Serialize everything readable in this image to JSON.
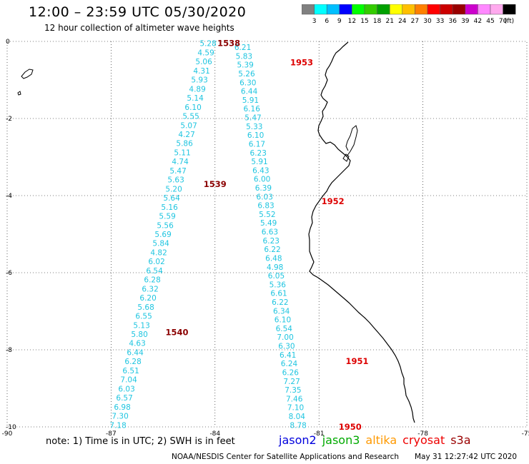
{
  "title": "12:00 – 23:59 UTC 05/30/2020",
  "subtitle": "12 hour collection of altimeter wave heights",
  "colorbar": {
    "colors": [
      "#808080",
      "#00ffff",
      "#00bfff",
      "#0000ff",
      "#00ff00",
      "#33cc00",
      "#00a000",
      "#ffff00",
      "#ffc000",
      "#ff8000",
      "#ff0000",
      "#cc0000",
      "#990000",
      "#cc00cc",
      "#ff88ff",
      "#ffaaee",
      "#000000"
    ],
    "labels": [
      "3",
      "6",
      "9",
      "12",
      "15",
      "18",
      "21",
      "24",
      "27",
      "30",
      "33",
      "36",
      "39",
      "42",
      "45",
      "70"
    ],
    "unit": "(ft)"
  },
  "axes": {
    "lon_min": -90,
    "lon_max": -75,
    "lat_min": -10,
    "lat_max": 0,
    "x_ticks": [
      -90,
      -87,
      -84,
      -81,
      -78,
      -75
    ],
    "x_tick_labels": [
      "-90",
      "-87",
      "-84",
      "-81",
      "-78",
      "-75"
    ],
    "y_ticks": [
      0,
      -2,
      -4,
      -6,
      -8,
      -10
    ],
    "y_tick_labels": [
      "0",
      "-2",
      "-4",
      "-6",
      "-8",
      "-10"
    ]
  },
  "tracks": [
    {
      "name": "west",
      "start": [
        -84.2,
        -0.05
      ],
      "end": [
        -86.8,
        -9.95
      ],
      "values": [
        "5.28",
        "4.59",
        "5.06",
        "4.31",
        "5.93",
        "4.89",
        "5.14",
        "6.10",
        "5.55",
        "5.07",
        "4.27",
        "5.86",
        "5.11",
        "4.74",
        "5.47",
        "5.63",
        "5.20",
        "5.64",
        "5.16",
        "5.59",
        "5.56",
        "5.69",
        "5.84",
        "4.82",
        "6.02",
        "6.54",
        "6.28",
        "6.32",
        "6.20",
        "5.68",
        "6.55",
        "5.13",
        "5.80",
        "4.63",
        "6.44",
        "6.28",
        "6.51",
        "7.04",
        "6.03",
        "6.57",
        "6.98",
        "7.30",
        "7.18"
      ]
    },
    {
      "name": "east",
      "start": [
        -83.2,
        -0.15
      ],
      "end": [
        -81.6,
        -9.95
      ],
      "values": [
        "6.21",
        "5.83",
        "5.39",
        "5.26",
        "6.30",
        "6.44",
        "5.91",
        "6.16",
        "5.47",
        "5.33",
        "6.10",
        "6.17",
        "6.23",
        "5.91",
        "6.43",
        "6.00",
        "6.39",
        "6.03",
        "6.83",
        "5.52",
        "5.49",
        "6.63",
        "6.23",
        "6.22",
        "6.48",
        "4.98",
        "6.05",
        "5.36",
        "6.61",
        "6.22",
        "6.34",
        "6.10",
        "6.54",
        "7.00",
        "6.30",
        "6.41",
        "6.24",
        "6.26",
        "7.27",
        "7.35",
        "7.46",
        "7.10",
        "8.04",
        "8.78"
      ]
    }
  ],
  "time_labels": [
    {
      "text": "1538",
      "lon": -83.6,
      "lat": -0.05,
      "color": "#8b0000"
    },
    {
      "text": "1953",
      "lon": -81.5,
      "lat": -0.55,
      "color": "#dd0000"
    },
    {
      "text": "1539",
      "lon": -84.0,
      "lat": -3.7,
      "color": "#8b0000"
    },
    {
      "text": "1952",
      "lon": -80.6,
      "lat": -4.15,
      "color": "#dd0000"
    },
    {
      "text": "1540",
      "lon": -85.1,
      "lat": -7.55,
      "color": "#8b0000"
    },
    {
      "text": "1951",
      "lon": -79.9,
      "lat": -8.3,
      "color": "#dd0000"
    },
    {
      "text": "1950",
      "lon": -80.1,
      "lat": -10.0,
      "color": "#dd0000"
    }
  ],
  "note": "note: 1) Time is in UTC; 2) SWH is in feet",
  "legend": [
    {
      "label": "jason2",
      "color": "#0000dd"
    },
    {
      "label": "jason3",
      "color": "#00aa00"
    },
    {
      "label": "altika",
      "color": "#ff9900"
    },
    {
      "label": "cryosat",
      "color": "#ee0000"
    },
    {
      "label": "s3a",
      "color": "#990000"
    }
  ],
  "credit": "NOAA/NESDIS Center for Satellite Applications and Research",
  "timestamp": "May 31 12:27:42 UTC 2020"
}
